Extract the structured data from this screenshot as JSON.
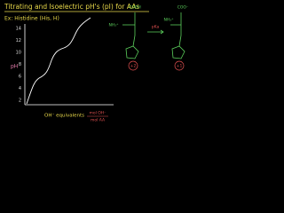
{
  "header": {
    "title": "Titrating and Isoelectric pH's (pI) for AAs",
    "example": "Ex: Histidine (His, H)"
  },
  "graph": {
    "y_label": "pH",
    "y_ticks": [
      "14",
      "12",
      "10",
      "8",
      "6",
      "4",
      "2"
    ],
    "x_label": "OH⁻ equivalents",
    "x_unit_top": "mol OH⁻",
    "x_unit_bottom": "mol AA"
  },
  "structures": {
    "left": {
      "top": "COOH",
      "amine": "NH₃⁺",
      "charge": "+2"
    },
    "arrow": "pKa",
    "right": {
      "top": "COO⁻",
      "amine": "NH₃⁺",
      "charge": "+1"
    }
  }
}
